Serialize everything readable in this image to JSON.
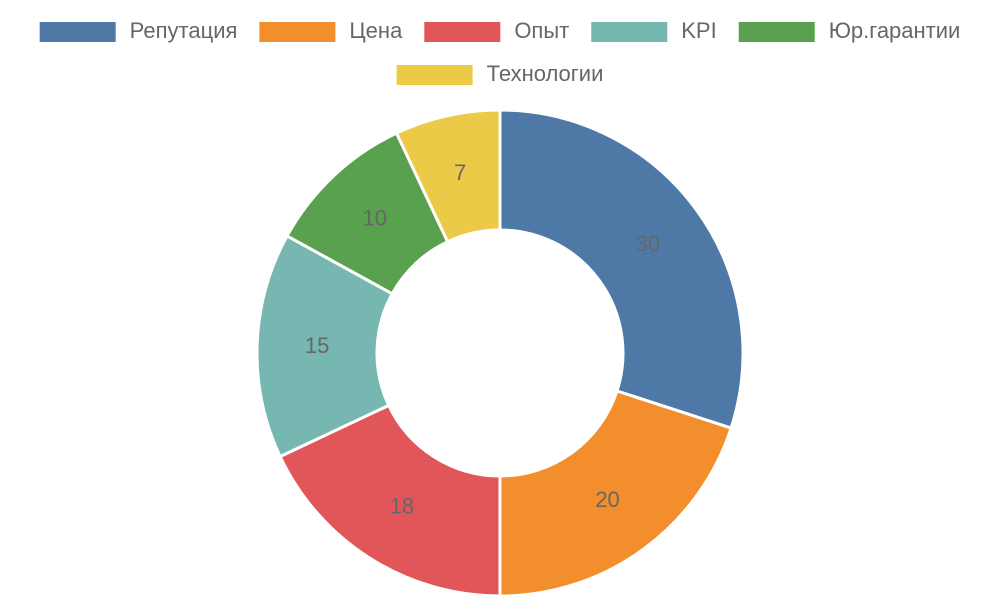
{
  "chart_data": {
    "type": "doughnut",
    "categories": [
      "Репутация",
      "Цена",
      "Опыт",
      "KPI",
      "Юр.гарантии",
      "Технологии"
    ],
    "values": [
      30,
      20,
      18,
      15,
      10,
      7
    ],
    "colors": [
      "#4e79a7",
      "#f28e2b",
      "#e15759",
      "#76b7b2",
      "#59a14f",
      "#edc948"
    ],
    "legend": "top"
  }
}
